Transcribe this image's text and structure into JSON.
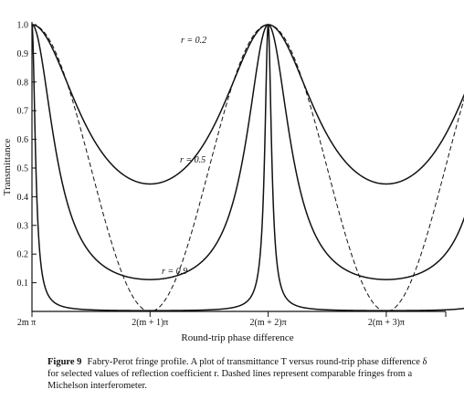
{
  "chart_data": {
    "type": "line",
    "xlabel": "Round-trip phase difference",
    "ylabel": "Transmittance",
    "xlim": [
      0,
      12.566
    ],
    "ylim": [
      0,
      1.0
    ],
    "y_ticks": [
      "0.1",
      "0.2",
      "0.3",
      "0.4",
      "0.5",
      "0.6",
      "0.7",
      "0.8",
      "0.9",
      "1.0"
    ],
    "x_ticks": [
      {
        "x": 0,
        "label": "2m π"
      },
      {
        "x": 3.1416,
        "label": "2(m + 1)π"
      },
      {
        "x": 6.2832,
        "label": "2(m + 2)π"
      },
      {
        "x": 9.4248,
        "label": "2(m + 3)π"
      }
    ],
    "series": [
      {
        "name": "r = 0.2",
        "r": 0.2,
        "style": "solid",
        "label": "r = 0.2"
      },
      {
        "name": "r = 0.5",
        "r": 0.5,
        "style": "solid",
        "label": "r = 0.5"
      },
      {
        "name": "r = 0.9",
        "r": 0.9,
        "style": "solid",
        "label": "r = 0.9"
      },
      {
        "name": "Michelson",
        "style": "dashed"
      }
    ],
    "grid": false
  },
  "caption": {
    "label": "Figure 9",
    "text": "Fabry-Perot fringe profile. A plot of transmittance T versus round-trip phase difference δ for selected values of reflection coefficient r. Dashed lines represent comparable fringes from a Michelson interferometer."
  }
}
